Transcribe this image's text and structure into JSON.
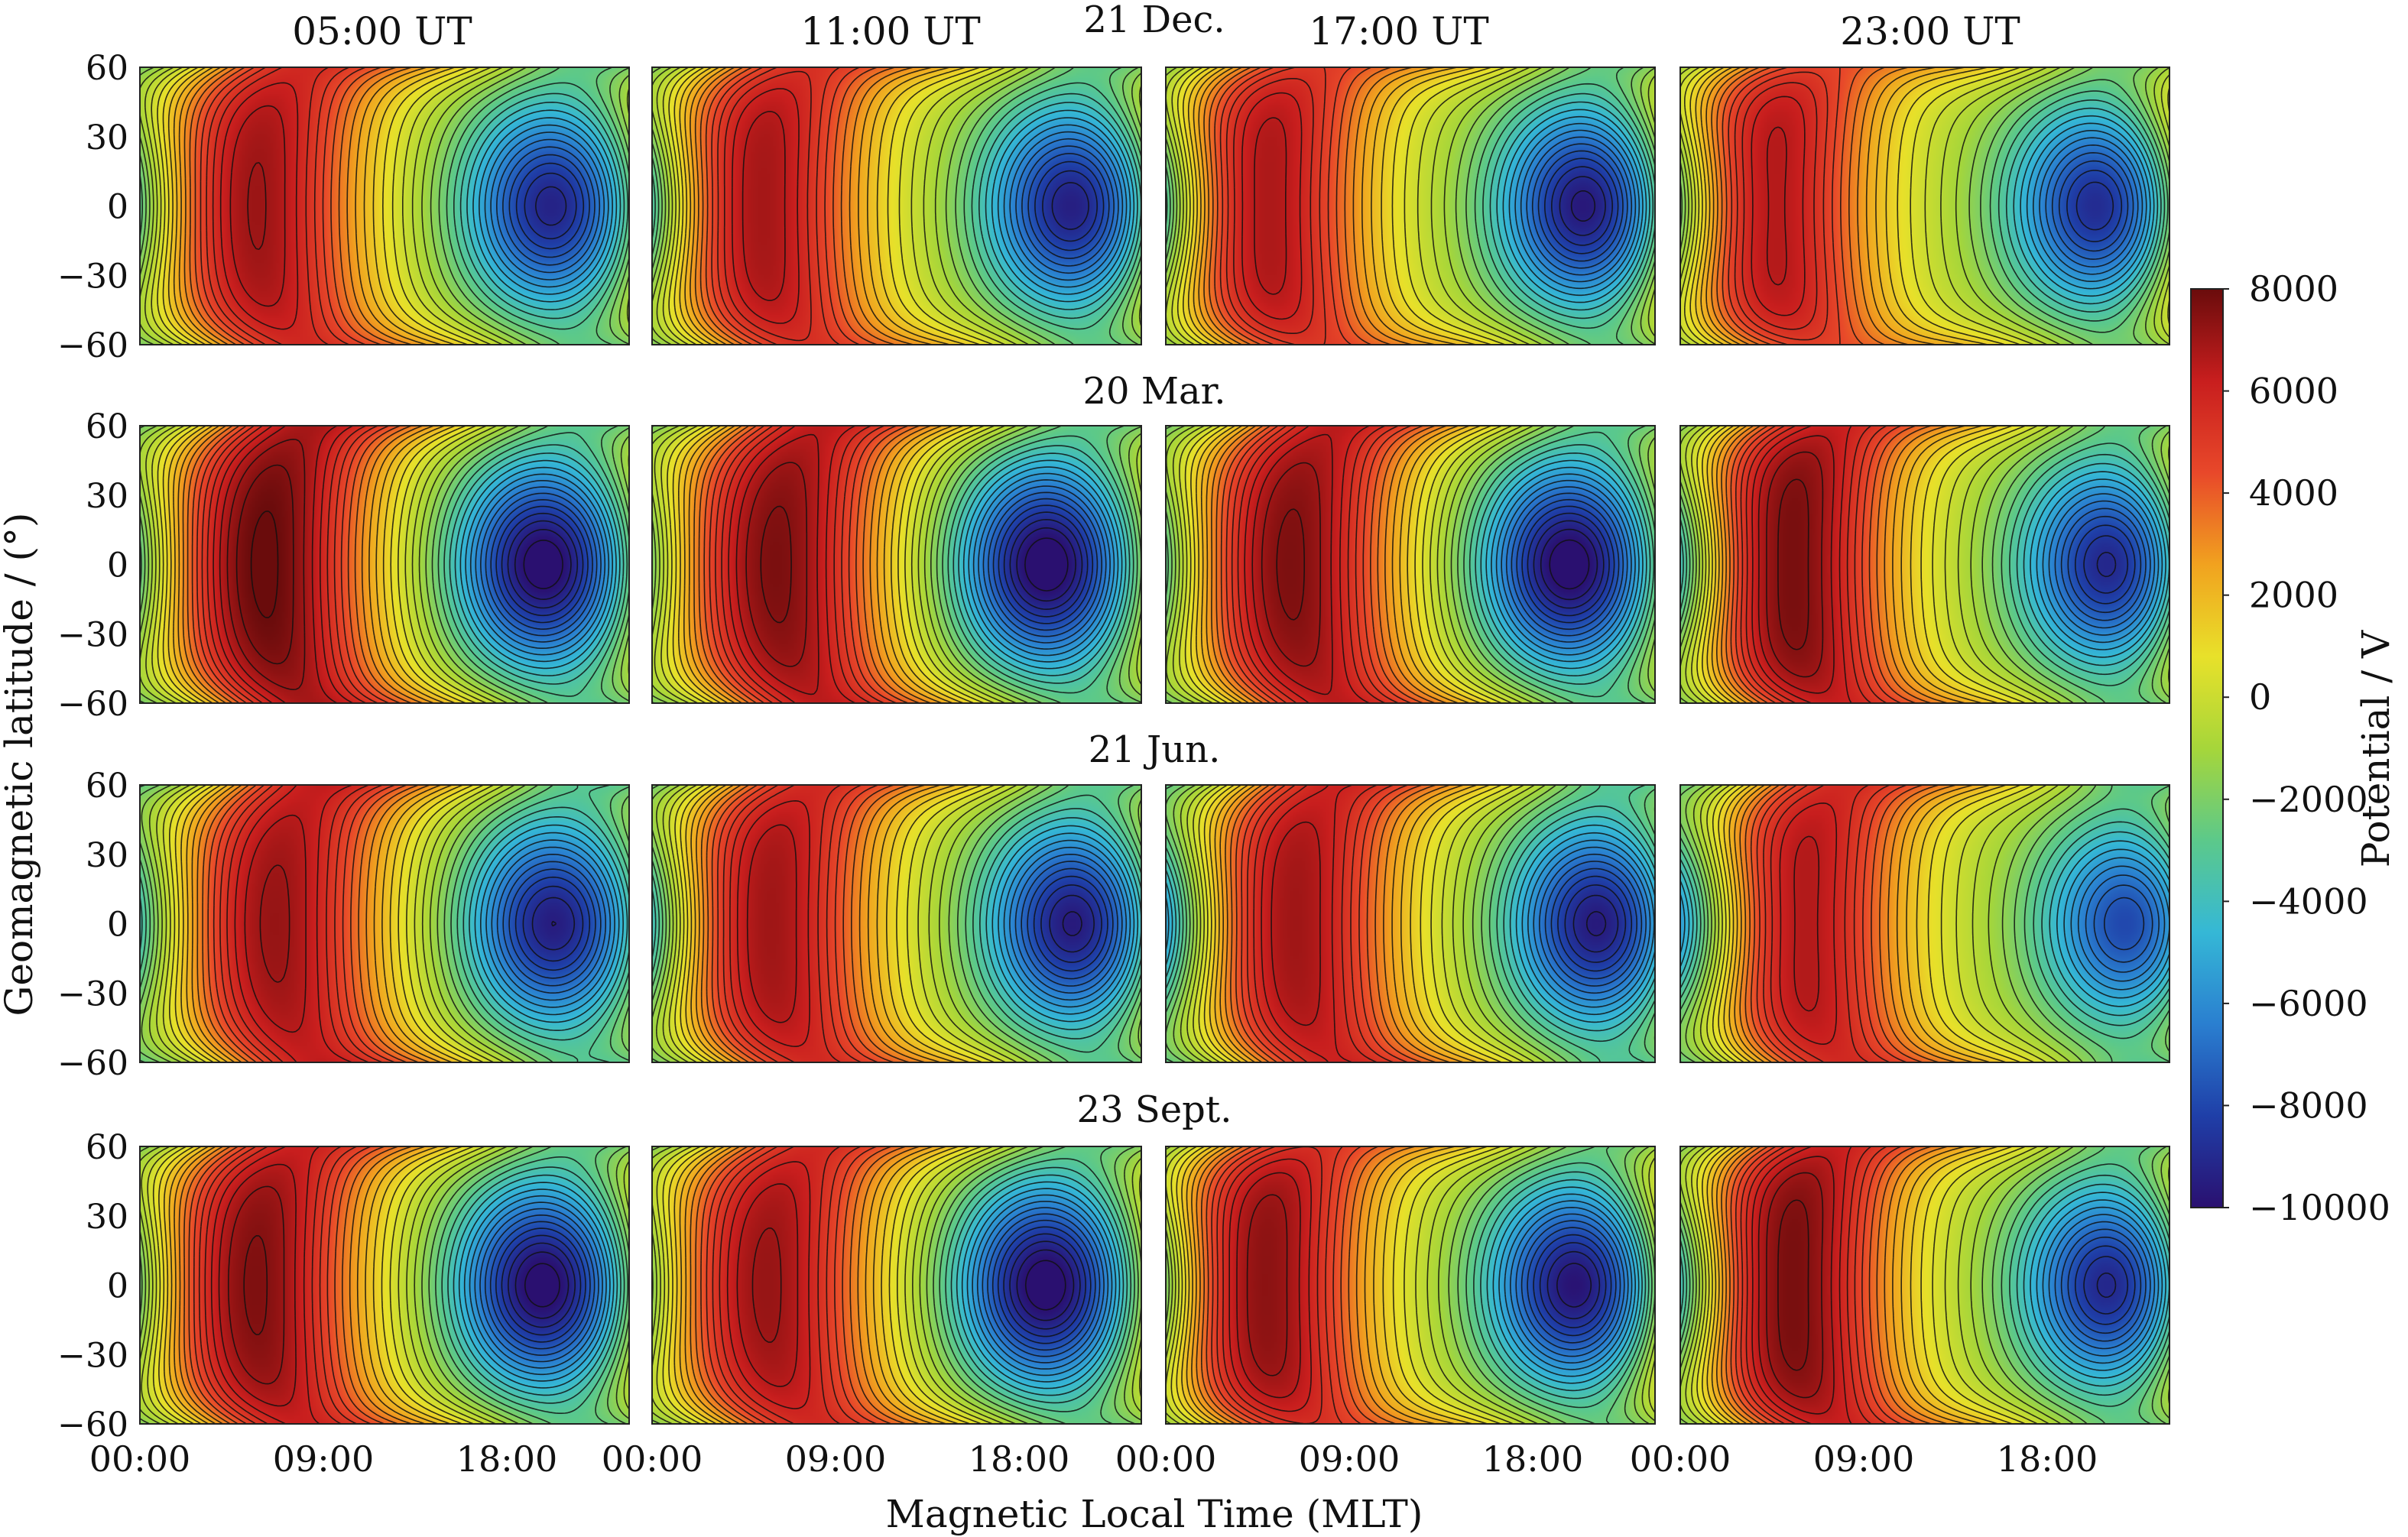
{
  "chart_data": {
    "type": "heatmap",
    "xlabel": "Magnetic Local Time (MLT)",
    "ylabel": "Geomagnetic latitude / (°)",
    "xlim": [
      "00:00",
      "24:00"
    ],
    "ylim": [
      -60,
      60
    ],
    "x_ticks": [
      "00:00",
      "09:00",
      "18:00"
    ],
    "y_ticks": [
      60,
      30,
      0,
      -30,
      -60
    ],
    "columns": [
      "05:00 UT",
      "11:00 UT",
      "17:00 UT",
      "23:00 UT"
    ],
    "rows": [
      "21 Dec.",
      "20 Mar.",
      "21 Jun.",
      "23 Sept."
    ],
    "colorbar": {
      "label": "Potential / V",
      "min": -10000,
      "max": 8000,
      "ticks": [
        8000,
        6000,
        4000,
        2000,
        0,
        -2000,
        -4000,
        -6000,
        -8000,
        -10000
      ],
      "colormap": [
        "#2a1070",
        "#1f3fa8",
        "#2a7fd0",
        "#35b8d6",
        "#5cc98a",
        "#a6d63a",
        "#e8e12a",
        "#f1a21f",
        "#e8482a",
        "#c81e1e",
        "#6a0c0c"
      ]
    },
    "contour_interval_V": 500,
    "panels": [
      {
        "row": "21 Dec.",
        "column": "05:00 UT",
        "min_potential_V": -9000,
        "min_mlt_h": 20.5,
        "max_potential_V": 6500,
        "max_mlt_h": 5.5
      },
      {
        "row": "21 Dec.",
        "column": "11:00 UT",
        "min_potential_V": -9500,
        "min_mlt_h": 21.0,
        "max_potential_V": 6500,
        "max_mlt_h": 5.0
      },
      {
        "row": "21 Dec.",
        "column": "17:00 UT",
        "min_potential_V": -10000,
        "min_mlt_h": 21.0,
        "max_potential_V": 6500,
        "max_mlt_h": 4.5
      },
      {
        "row": "21 Dec.",
        "column": "23:00 UT",
        "min_potential_V": -9500,
        "min_mlt_h": 21.0,
        "max_potential_V": 6500,
        "max_mlt_h": 4.0
      },
      {
        "row": "20 Mar.",
        "column": "05:00 UT",
        "min_potential_V": -10000,
        "min_mlt_h": 20.0,
        "max_potential_V": 7500,
        "max_mlt_h": 6.0
      },
      {
        "row": "20 Mar.",
        "column": "11:00 UT",
        "min_potential_V": -10000,
        "min_mlt_h": 19.5,
        "max_potential_V": 7000,
        "max_mlt_h": 6.0
      },
      {
        "row": "20 Mar.",
        "column": "17:00 UT",
        "min_potential_V": -10000,
        "min_mlt_h": 20.0,
        "max_potential_V": 7000,
        "max_mlt_h": 6.0
      },
      {
        "row": "20 Mar.",
        "column": "23:00 UT",
        "min_potential_V": -9500,
        "min_mlt_h": 21.5,
        "max_potential_V": 7500,
        "max_mlt_h": 5.0
      },
      {
        "row": "21 Jun.",
        "column": "05:00 UT",
        "min_potential_V": -9000,
        "min_mlt_h": 20.5,
        "max_potential_V": 6500,
        "max_mlt_h": 6.5
      },
      {
        "row": "21 Jun.",
        "column": "11:00 UT",
        "min_potential_V": -9500,
        "min_mlt_h": 21.0,
        "max_potential_V": 6500,
        "max_mlt_h": 5.5
      },
      {
        "row": "21 Jun.",
        "column": "17:00 UT",
        "min_potential_V": -9500,
        "min_mlt_h": 21.5,
        "max_potential_V": 6500,
        "max_mlt_h": 6.0
      },
      {
        "row": "21 Jun.",
        "column": "23:00 UT",
        "min_potential_V": -8500,
        "min_mlt_h": 22.5,
        "max_potential_V": 6500,
        "max_mlt_h": 5.5
      },
      {
        "row": "23 Sept.",
        "column": "05:00 UT",
        "min_potential_V": -10000,
        "min_mlt_h": 20.0,
        "max_potential_V": 7000,
        "max_mlt_h": 5.5
      },
      {
        "row": "23 Sept.",
        "column": "11:00 UT",
        "min_potential_V": -10000,
        "min_mlt_h": 19.5,
        "max_potential_V": 6500,
        "max_mlt_h": 5.5
      },
      {
        "row": "23 Sept.",
        "column": "17:00 UT",
        "min_potential_V": -10000,
        "min_mlt_h": 20.5,
        "max_potential_V": 7000,
        "max_mlt_h": 4.5
      },
      {
        "row": "23 Sept.",
        "column": "23:00 UT",
        "min_potential_V": -9500,
        "min_mlt_h": 21.5,
        "max_potential_V": 7500,
        "max_mlt_h": 5.0
      }
    ]
  }
}
